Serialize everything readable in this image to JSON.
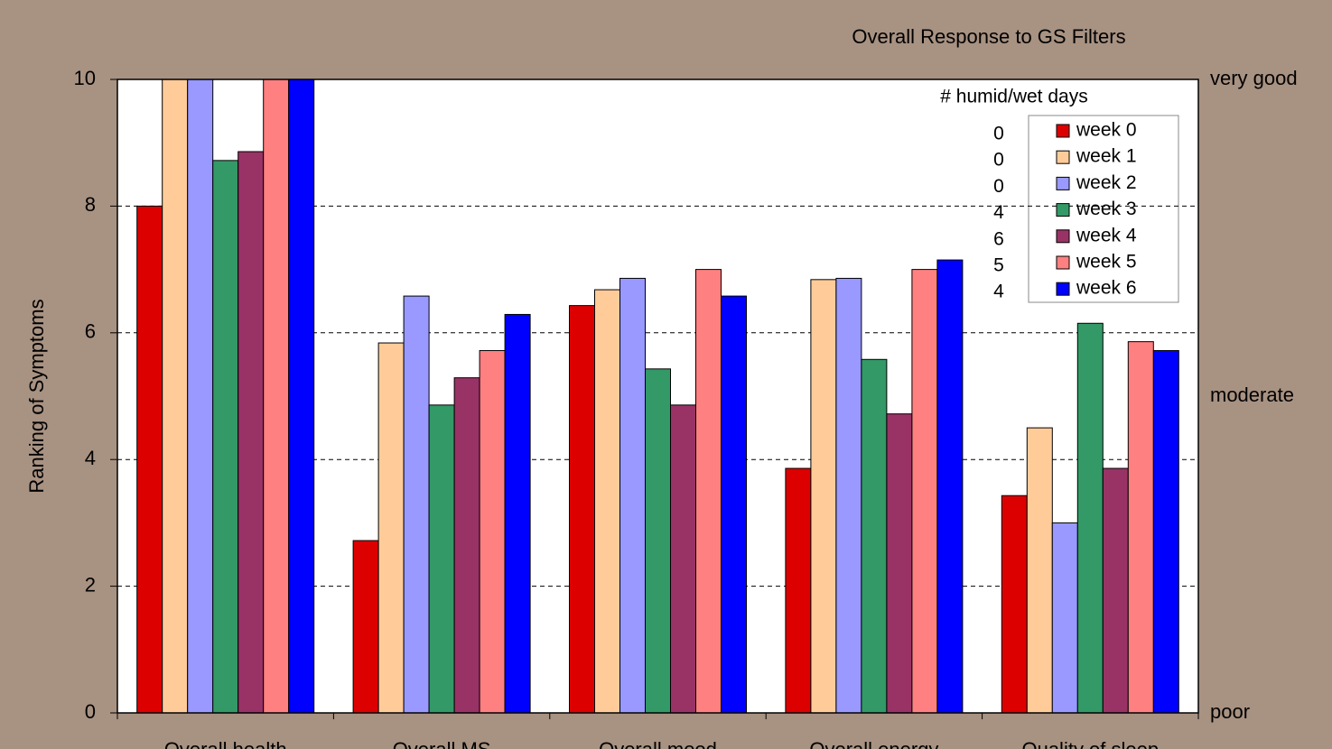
{
  "chart_data": {
    "type": "bar",
    "title": "Overall Response to GS Filters",
    "y_label": "Ranking of Symptoms",
    "categories": [
      "Overall health",
      "Overall MS",
      "Overall mood",
      "Overall energy",
      "Quality of sleep"
    ],
    "legend_title": "# humid/wet days",
    "series": [
      {
        "name": "week 0",
        "color": "#dd0000",
        "humid_days": 0,
        "values": [
          8.0,
          2.72,
          6.43,
          3.86,
          3.43
        ]
      },
      {
        "name": "week 1",
        "color": "#ffcc99",
        "humid_days": 0,
        "values": [
          10,
          5.84,
          6.68,
          6.84,
          4.5
        ]
      },
      {
        "name": "week 2",
        "color": "#9999ff",
        "humid_days": 0,
        "values": [
          10,
          6.58,
          6.86,
          6.86,
          3.0
        ]
      },
      {
        "name": "week 3",
        "color": "#339966",
        "humid_days": 4,
        "values": [
          8.72,
          4.86,
          5.43,
          5.58,
          6.15
        ]
      },
      {
        "name": "week 4",
        "color": "#993366",
        "humid_days": 6,
        "values": [
          8.86,
          5.29,
          4.86,
          4.72,
          3.86
        ]
      },
      {
        "name": "week 5",
        "color": "#ff8080",
        "humid_days": 5,
        "values": [
          10,
          5.72,
          7.0,
          7.0,
          5.86
        ]
      },
      {
        "name": "week 6",
        "color": "#0000ff",
        "humid_days": 4,
        "values": [
          10,
          6.29,
          6.58,
          7.15,
          5.72
        ]
      }
    ],
    "ylim": [
      0,
      10
    ],
    "yticks": [
      0,
      2,
      4,
      6,
      8,
      10
    ],
    "grid": true,
    "right_labels": [
      {
        "value": 10,
        "label": "very good"
      },
      {
        "value": 5,
        "label": "moderate"
      },
      {
        "value": 0,
        "label": "poor"
      }
    ]
  }
}
